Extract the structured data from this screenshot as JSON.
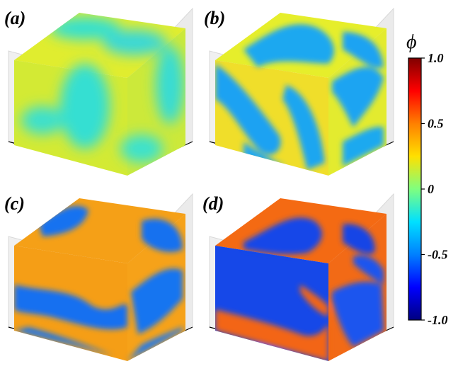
{
  "panels": [
    {
      "label": "(a)",
      "scheme": "early-mix",
      "colors": {
        "top": "#e3ee2f",
        "left": "#d5ea33",
        "right": "#c9e83a",
        "blob": "#33e0d2"
      }
    },
    {
      "label": "(b)",
      "scheme": "forming-domains",
      "colors": {
        "top": "#e9ef2a",
        "left": "#f1e02a",
        "right": "#e5ec2e",
        "blob": "#1aa6f2"
      }
    },
    {
      "label": "(c)",
      "scheme": "coarsening",
      "colors": {
        "top": "#1473f0",
        "left": "#f59f17",
        "right": "#f6a119",
        "blob": "#f4a015"
      }
    },
    {
      "label": "(d)",
      "scheme": "late-stage",
      "colors": {
        "top": "#f56a14",
        "left": "#1446e8",
        "right": "#1a55ee",
        "blob": "#f36512"
      }
    }
  ],
  "colorbar": {
    "title": "ϕ",
    "ticks": [
      "1.0",
      "0.5",
      "0",
      "-0.5",
      "-1.0"
    ],
    "tick_values": [
      1.0,
      0.5,
      0,
      -0.5,
      -1.0
    ],
    "range": [
      -1.0,
      1.0
    ],
    "colormap": "jet",
    "stops": [
      "#000080",
      "#0000ff",
      "#0080ff",
      "#00e0ff",
      "#7fff7f",
      "#ffe000",
      "#ff8000",
      "#ff0000",
      "#800000"
    ]
  }
}
